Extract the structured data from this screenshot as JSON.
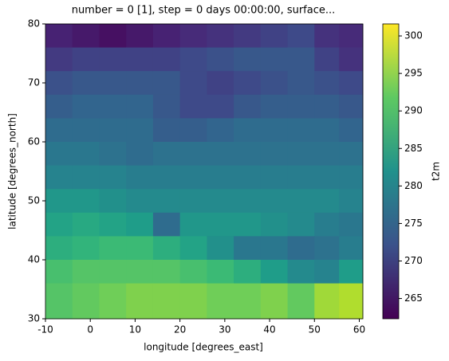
{
  "chart_data": {
    "type": "heatmap",
    "title": "number = 0 [1], step = 0 days 00:00:00, surface...",
    "x_label": "longitude [degrees_east]",
    "y_label": "latitude [degrees_north]",
    "colorbar_label": "t2m",
    "colormap": "viridis",
    "x": [
      -7,
      -1,
      5,
      11,
      17,
      23,
      29,
      35,
      41,
      47,
      53,
      58
    ],
    "y": [
      78,
      74,
      70,
      66,
      62,
      58,
      54,
      50,
      46,
      42,
      38,
      34
    ],
    "z": [
      [
        266,
        265,
        264,
        265,
        266,
        267,
        268,
        269,
        270,
        271,
        268,
        267
      ],
      [
        269,
        270,
        270,
        270,
        270,
        271,
        272,
        273,
        273,
        273,
        270,
        268
      ],
      [
        272,
        273,
        273,
        273,
        273,
        271,
        270,
        271,
        272,
        273,
        272,
        271
      ],
      [
        274,
        275,
        275,
        275,
        273,
        271,
        271,
        273,
        274,
        274,
        274,
        273
      ],
      [
        276,
        276,
        276,
        276,
        274,
        274,
        275,
        276,
        276,
        276,
        276,
        275
      ],
      [
        278,
        278,
        277,
        276,
        277,
        277,
        277,
        277,
        277,
        277,
        277,
        277
      ],
      [
        280,
        280,
        280,
        279,
        279,
        279,
        279,
        279,
        279,
        279,
        279,
        279
      ],
      [
        283,
        283,
        282,
        281,
        281,
        281,
        281,
        281,
        281,
        281,
        281,
        280
      ],
      [
        285,
        286,
        285,
        284,
        276,
        283,
        283,
        283,
        282,
        281,
        279,
        278
      ],
      [
        287,
        288,
        289,
        289,
        287,
        285,
        282,
        278,
        278,
        276,
        277,
        279
      ],
      [
        290,
        291,
        291,
        291,
        291,
        290,
        289,
        287,
        284,
        281,
        280,
        284
      ],
      [
        291,
        292,
        293,
        294,
        294,
        294,
        293,
        293,
        294,
        292,
        296,
        297
      ]
    ],
    "xlim": [
      -10,
      60.8
    ],
    "ylim": [
      30,
      80
    ],
    "xticks": [
      -10,
      0,
      10,
      20,
      30,
      40,
      50,
      60
    ],
    "yticks": [
      30,
      40,
      50,
      60,
      70,
      80
    ],
    "clim": [
      262.3,
      301.6
    ],
    "cticks": [
      265,
      270,
      275,
      280,
      285,
      290,
      295,
      300
    ]
  }
}
